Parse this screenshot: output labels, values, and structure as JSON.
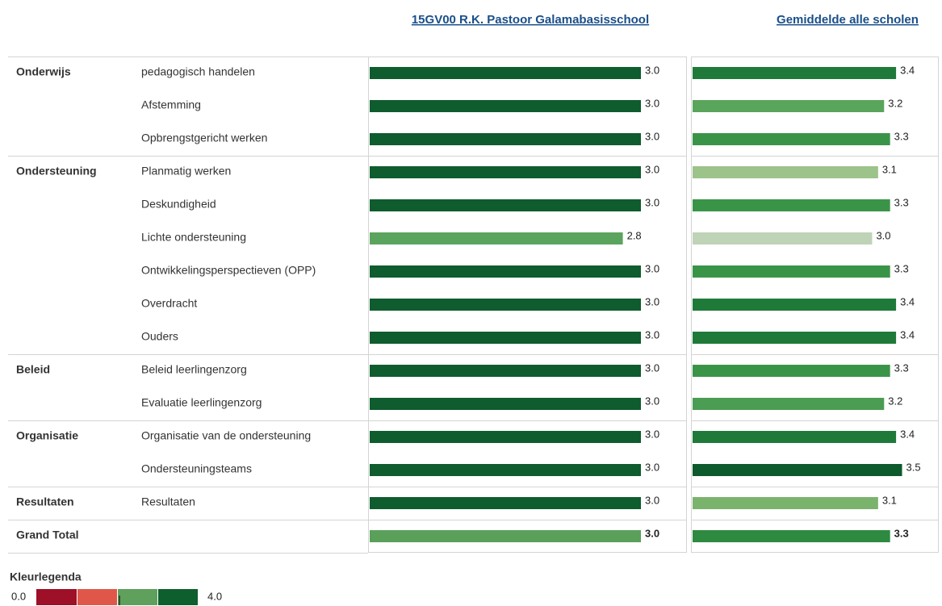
{
  "row_groups": [
    {
      "name": "Onderwijs",
      "categories": [
        "pedagogisch handelen",
        "Afstemming",
        "Opbrengstgericht werken"
      ]
    },
    {
      "name": "Ondersteuning",
      "categories": [
        "Planmatig werken",
        "Deskundigheid",
        "Lichte ondersteuning",
        "Ontwikkelingsperspectieven (OPP)",
        "Overdracht",
        "Ouders"
      ]
    },
    {
      "name": "Beleid",
      "categories": [
        "Beleid leerlingenzorg",
        "Evaluatie leerlingenzorg"
      ]
    },
    {
      "name": "Organisatie",
      "categories": [
        "Organisatie van de ondersteuning",
        "Ondersteuningsteams"
      ]
    },
    {
      "name": "Resultaten",
      "categories": [
        "Resultaten"
      ]
    },
    {
      "name": "Grand Total",
      "categories": [
        null
      ]
    }
  ],
  "chart_data": [
    {
      "type": "bar",
      "title": "15GV00 R.K. Pastoor Galamabasisschool",
      "xlim": [
        0,
        3.5
      ],
      "values": [
        3,
        3,
        3,
        3,
        3,
        2.8,
        3,
        3,
        3,
        3,
        3,
        3,
        3,
        3,
        3
      ],
      "value_labels": [
        "3.0",
        "3.0",
        "3.0",
        "3.0",
        "3.0",
        "2.8",
        "3.0",
        "3.0",
        "3.0",
        "3.0",
        "3.0",
        "3.0",
        "3.0",
        "3.0",
        "3.0"
      ],
      "colors": [
        "#0f5c2e",
        "#0f5c2e",
        "#0f5c2e",
        "#0f5c2e",
        "#0f5c2e",
        "#5ba45e",
        "#0f5c2e",
        "#0f5c2e",
        "#0f5c2e",
        "#0f5c2e",
        "#0f5c2e",
        "#0f5c2e",
        "#0f5c2e",
        "#0f5c2e",
        "#5aa05a"
      ]
    },
    {
      "type": "bar",
      "title": "Gemiddelde alle scholen",
      "xlim": [
        0,
        4.1
      ],
      "values": [
        3.4,
        3.2,
        3.3,
        3.1,
        3.3,
        3,
        3.3,
        3.4,
        3.4,
        3.3,
        3.2,
        3.4,
        3.5,
        3.1,
        3.3
      ],
      "value_labels": [
        "3.4",
        "3.2",
        "3.3",
        "3.1",
        "3.3",
        "3.0",
        "3.3",
        "3.4",
        "3.4",
        "3.3",
        "3.2",
        "3.4",
        "3.5",
        "3.1",
        "3.3"
      ],
      "colors": [
        "#1f7a3a",
        "#5aa55c",
        "#3a9448",
        "#9cc38a",
        "#3a9448",
        "#bfd3b6",
        "#3a9448",
        "#1f7a3a",
        "#1f7a3a",
        "#3a9448",
        "#4a9d52",
        "#1f7a3a",
        "#0d5a2c",
        "#7ab36c",
        "#2e8a40"
      ]
    }
  ],
  "legend": {
    "title": "Kleurlegenda",
    "range": [
      {
        "value": 0,
        "label": "0.0"
      },
      {
        "value": 4,
        "label": "4.0"
      }
    ],
    "colors": [
      "#9e0f28",
      "#e0574a",
      "#5fa05c",
      "#0d5f2e"
    ]
  }
}
